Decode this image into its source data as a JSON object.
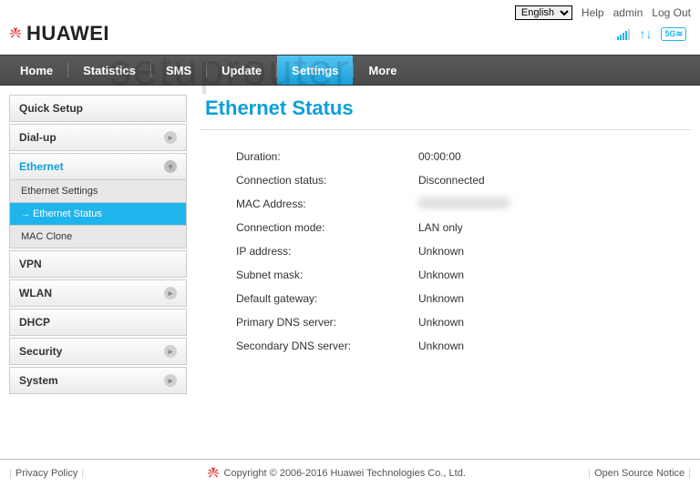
{
  "topbar": {
    "language_options": [
      "English"
    ],
    "language_selected": "English",
    "help": "Help",
    "admin": "admin",
    "logout": "Log Out"
  },
  "brand": {
    "name": "HUAWEI"
  },
  "nav": {
    "items": [
      "Home",
      "Statistics",
      "SMS",
      "Update",
      "Settings",
      "More"
    ],
    "active_index": 4
  },
  "sidebar": {
    "items": [
      {
        "label": "Quick Setup",
        "type": "item"
      },
      {
        "label": "Dial-up",
        "type": "item",
        "chev": "right"
      },
      {
        "label": "Ethernet",
        "type": "item",
        "expanded": true,
        "chev": "down",
        "subs": [
          {
            "label": "Ethernet Settings",
            "active": false
          },
          {
            "label": "Ethernet Status",
            "active": true
          },
          {
            "label": "MAC Clone",
            "active": false
          }
        ]
      },
      {
        "label": "VPN",
        "type": "item"
      },
      {
        "label": "WLAN",
        "type": "item",
        "chev": "right"
      },
      {
        "label": "DHCP",
        "type": "item"
      },
      {
        "label": "Security",
        "type": "item",
        "chev": "right"
      },
      {
        "label": "System",
        "type": "item",
        "chev": "right"
      }
    ]
  },
  "page": {
    "title": "Ethernet Status",
    "rows": [
      {
        "label": "Duration:",
        "value": "00:00:00"
      },
      {
        "label": "Connection status:",
        "value": "Disconnected"
      },
      {
        "label": "MAC Address:",
        "value": "",
        "blurred": true
      },
      {
        "label": "Connection mode:",
        "value": "LAN only"
      },
      {
        "label": "IP address:",
        "value": "Unknown"
      },
      {
        "label": "Subnet mask:",
        "value": "Unknown"
      },
      {
        "label": "Default gateway:",
        "value": "Unknown"
      },
      {
        "label": "Primary DNS server:",
        "value": "Unknown"
      },
      {
        "label": "Secondary DNS server:",
        "value": "Unknown"
      }
    ]
  },
  "footer": {
    "privacy": "Privacy Policy",
    "copyright": "Copyright © 2006-2016 Huawei Technologies Co., Ltd.",
    "opensource": "Open Source Notice"
  },
  "watermark": "setuprouter",
  "colors": {
    "accent": "#0d9fd9",
    "nav_active": "#1fb4ec"
  }
}
